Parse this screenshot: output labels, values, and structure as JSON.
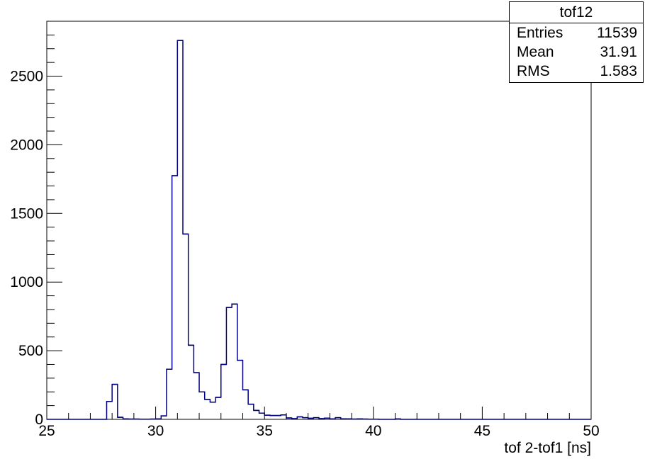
{
  "chart_data": {
    "type": "histogram",
    "xlabel": "tof 2-tof1 [ns]",
    "ylabel": "",
    "xlim": [
      25,
      50
    ],
    "ylim": [
      0,
      2900
    ],
    "x_ticks": [
      25,
      30,
      35,
      40,
      45,
      50
    ],
    "y_ticks": [
      0,
      500,
      1000,
      1500,
      2000,
      2500
    ],
    "bin_width": 0.25,
    "bins": [
      {
        "x": 27.75,
        "y": 130
      },
      {
        "x": 28.0,
        "y": 255
      },
      {
        "x": 28.25,
        "y": 15
      },
      {
        "x": 28.5,
        "y": 3
      },
      {
        "x": 28.75,
        "y": 2
      },
      {
        "x": 29.0,
        "y": 2
      },
      {
        "x": 29.25,
        "y": 1
      },
      {
        "x": 29.5,
        "y": 1
      },
      {
        "x": 29.75,
        "y": 2
      },
      {
        "x": 30.0,
        "y": 3
      },
      {
        "x": 30.25,
        "y": 25
      },
      {
        "x": 30.5,
        "y": 365
      },
      {
        "x": 30.75,
        "y": 1775
      },
      {
        "x": 31.0,
        "y": 2760
      },
      {
        "x": 31.25,
        "y": 1350
      },
      {
        "x": 31.5,
        "y": 540
      },
      {
        "x": 31.75,
        "y": 340
      },
      {
        "x": 32.0,
        "y": 200
      },
      {
        "x": 32.25,
        "y": 145
      },
      {
        "x": 32.5,
        "y": 125
      },
      {
        "x": 32.75,
        "y": 160
      },
      {
        "x": 33.0,
        "y": 400
      },
      {
        "x": 33.25,
        "y": 815
      },
      {
        "x": 33.5,
        "y": 840
      },
      {
        "x": 33.75,
        "y": 430
      },
      {
        "x": 34.0,
        "y": 215
      },
      {
        "x": 34.25,
        "y": 110
      },
      {
        "x": 34.5,
        "y": 65
      },
      {
        "x": 34.75,
        "y": 45
      },
      {
        "x": 35.0,
        "y": 30
      },
      {
        "x": 35.25,
        "y": 28
      },
      {
        "x": 35.5,
        "y": 28
      },
      {
        "x": 35.75,
        "y": 32
      },
      {
        "x": 36.0,
        "y": 10
      },
      {
        "x": 36.25,
        "y": 5
      },
      {
        "x": 36.5,
        "y": 18
      },
      {
        "x": 36.75,
        "y": 12
      },
      {
        "x": 37.0,
        "y": 8
      },
      {
        "x": 37.25,
        "y": 12
      },
      {
        "x": 37.5,
        "y": 5
      },
      {
        "x": 37.75,
        "y": 9
      },
      {
        "x": 38.0,
        "y": 3
      },
      {
        "x": 38.25,
        "y": 12
      },
      {
        "x": 38.5,
        "y": 4
      },
      {
        "x": 38.75,
        "y": 3
      },
      {
        "x": 39.0,
        "y": 2
      },
      {
        "x": 39.25,
        "y": 3
      },
      {
        "x": 39.5,
        "y": 2
      },
      {
        "x": 39.75,
        "y": 1
      },
      {
        "x": 40.0,
        "y": 1
      },
      {
        "x": 41.0,
        "y": 3
      }
    ],
    "line_color": "#000080",
    "stats": {
      "title": "tof12",
      "rows": [
        {
          "label": "Entries",
          "value": "11539"
        },
        {
          "label": "Mean",
          "value": "31.91"
        },
        {
          "label": "RMS",
          "value": "1.583"
        }
      ]
    }
  }
}
